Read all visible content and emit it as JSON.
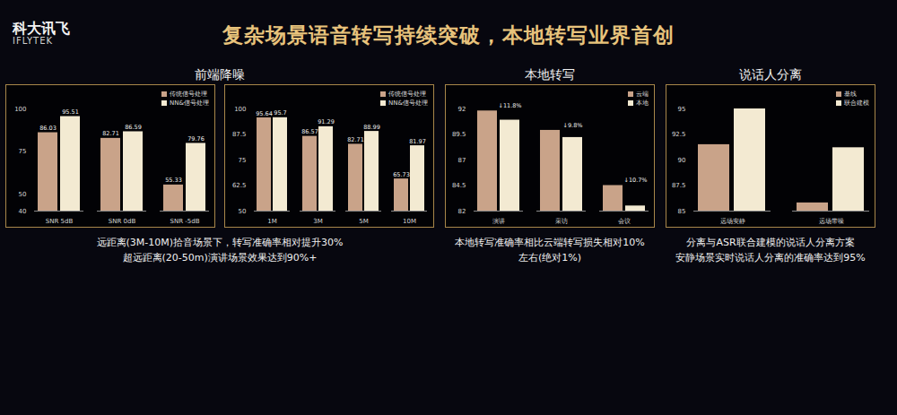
{
  "header": {
    "logo": "科大讯飞",
    "logo_sub": "IFLYTEK",
    "title": "复杂场景语音转写持续突破，本地转写业界首创"
  },
  "chart_data": [
    {
      "type": "bar",
      "title": "前端降噪",
      "categories": [
        "SNR 5dB",
        "SNR 0dB",
        "SNR -5dB"
      ],
      "series": [
        {
          "name": "传统信号处理",
          "color": "#c9a389",
          "values": [
            86.03,
            82.71,
            55.33
          ]
        },
        {
          "name": "NN&信号处理",
          "color": "#f3ead2",
          "values": [
            95.51,
            86.59,
            79.76
          ]
        }
      ],
      "ylim": [
        40,
        100
      ],
      "yticks": [
        40,
        50,
        75,
        100
      ],
      "data_labels": true,
      "legend": "top-right"
    },
    {
      "type": "bar",
      "categories": [
        "1M",
        "3M",
        "5M",
        "10M"
      ],
      "series": [
        {
          "name": "传统信号处理",
          "color": "#c9a389",
          "values": [
            95.64,
            86.57,
            82.71,
            65.73
          ]
        },
        {
          "name": "NN&信号处理",
          "color": "#f3ead2",
          "values": [
            95.7,
            91.29,
            88.99,
            81.97
          ]
        }
      ],
      "ylim": [
        50,
        100
      ],
      "yticks": [
        50,
        62.5,
        75,
        87.5,
        100
      ],
      "data_labels": true,
      "legend": "top-right",
      "caption": [
        "远距离(3M-10M)拾音场景下，转写准确率相对提升30%",
        "超远距离(20-50m)演讲场景效果达到90%+"
      ]
    },
    {
      "type": "bar",
      "title": "本地转写",
      "categories": [
        "演讲",
        "采访",
        "会议"
      ],
      "series": [
        {
          "name": "云端",
          "color": "#c9a389",
          "values": [
            91.8,
            89.9,
            84.5
          ]
        },
        {
          "name": "本地",
          "color": "#f3ead2",
          "values": [
            90.9,
            89.2,
            82.5
          ]
        }
      ],
      "ylim": [
        82,
        92
      ],
      "yticks": [
        82,
        84.5,
        87,
        89.5,
        92
      ],
      "data_labels": false,
      "legend": "top-right",
      "annotations": [
        {
          "category": "演讲",
          "series": "本地",
          "text": "↓11.8%"
        },
        {
          "category": "采访",
          "series": "本地",
          "text": "↓9.8%"
        },
        {
          "category": "会议",
          "series": "本地",
          "text": "↓10.7%"
        }
      ],
      "caption": [
        "本地转写准确率相比云端转写损失相对10%",
        "左右(绝对1%)"
      ]
    },
    {
      "type": "bar",
      "title": "说话人分离",
      "categories": [
        "远场安静",
        "远场带噪"
      ],
      "series": [
        {
          "name": "基线",
          "color": "#c9a389",
          "values": [
            91.5,
            85.8
          ]
        },
        {
          "name": "联合建模",
          "color": "#f3ead2",
          "values": [
            95,
            91.2
          ]
        }
      ],
      "ylim": [
        85,
        95
      ],
      "yticks": [
        85,
        87.5,
        90,
        92.5,
        95
      ],
      "data_labels": false,
      "legend": "top-right",
      "caption": [
        "分离与ASR联合建模的说话人分离方案",
        "安静场景实时说话人分离的准确率达到95%"
      ]
    }
  ]
}
